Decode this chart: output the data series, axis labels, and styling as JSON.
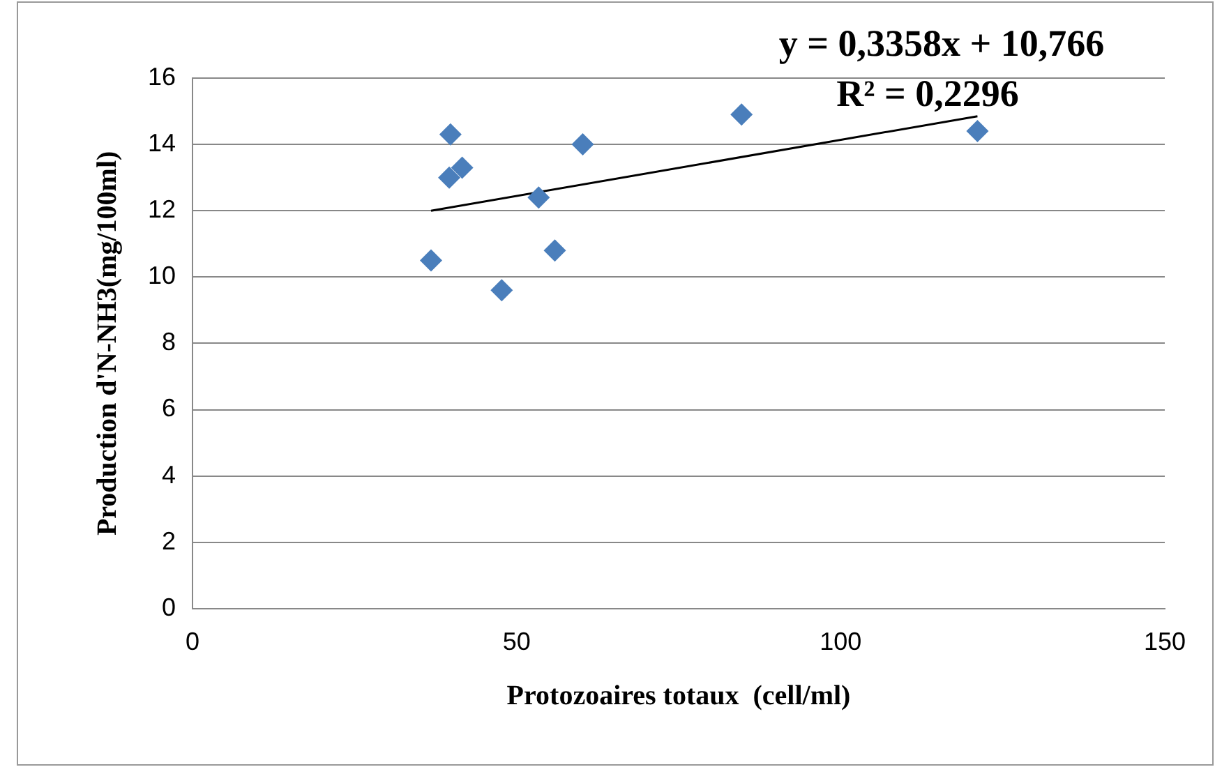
{
  "chart_data": {
    "type": "scatter",
    "xlabel": "Protozoaires totaux  (cell/ml)",
    "ylabel": "Production d'N-NH3(mg/100ml)",
    "annotations": [
      "y = 0,3358x + 10,766",
      "R² = 0,2296"
    ],
    "xlim": [
      0,
      150
    ],
    "xticks": [
      0,
      50,
      100,
      150
    ],
    "ylim": [
      0,
      16
    ],
    "yticks": [
      0,
      2,
      4,
      6,
      8,
      10,
      12,
      14,
      16
    ],
    "grid": "y",
    "legend": false,
    "marker": "diamond",
    "series": [
      {
        "color": "#4a7ebb",
        "x": [
          36.8,
          39.6,
          39.8,
          41.6,
          47.7,
          53.4,
          55.9,
          60.2,
          84.7,
          121.1
        ],
        "values": [
          10.5,
          13.0,
          14.3,
          13.3,
          9.6,
          12.4,
          10.8,
          14.0,
          14.9,
          14.4
        ]
      },
      {
        "type": "line",
        "marker": "none",
        "color": "#000000",
        "x": [
          36.8,
          121.1
        ],
        "values": [
          12.0,
          14.85
        ]
      }
    ]
  }
}
